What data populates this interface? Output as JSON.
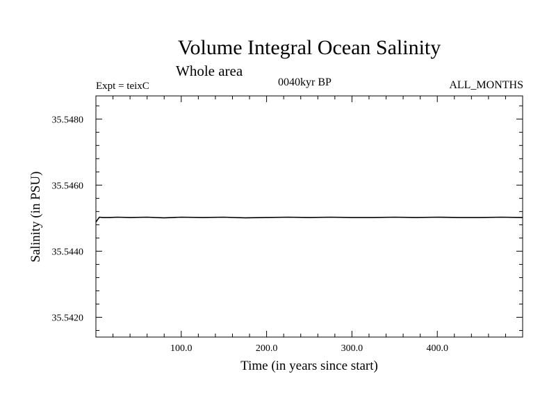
{
  "chart_data": {
    "type": "line",
    "title": "Volume Integral Ocean Salinity",
    "subtitle": "Whole area",
    "experiment": "Expt = teixC",
    "period": "0040kyr BP",
    "months": "ALL_MONTHS",
    "xlabel": "Time (in years since start)",
    "ylabel": "Salinity (in PSU)",
    "xlim": [
      0,
      500
    ],
    "ylim": [
      35.5414,
      35.5487
    ],
    "xticks": [
      100,
      200,
      300,
      400
    ],
    "xtick_labels": [
      "100.0",
      "200.0",
      "300.0",
      "400.0"
    ],
    "yticks": [
      35.542,
      35.544,
      35.546,
      35.548
    ],
    "ytick_labels": [
      "35.5420",
      "35.5440",
      "35.5460",
      "35.5480"
    ],
    "grid": false,
    "series": [
      {
        "color": "#000000",
        "x": [
          0,
          4,
          8,
          16,
          25,
          40,
          60,
          80,
          100,
          125,
          150,
          175,
          200,
          225,
          250,
          275,
          300,
          325,
          350,
          375,
          400,
          425,
          450,
          475,
          500
        ],
        "y": [
          35.54488,
          35.54503,
          35.54502,
          35.54502,
          35.54503,
          35.54502,
          35.54503,
          35.54501,
          35.54503,
          35.54502,
          35.54503,
          35.54501,
          35.54502,
          35.54503,
          35.54502,
          35.54503,
          35.54502,
          35.54502,
          35.54503,
          35.54502,
          35.54503,
          35.54502,
          35.54502,
          35.54503,
          35.54502
        ]
      }
    ]
  }
}
